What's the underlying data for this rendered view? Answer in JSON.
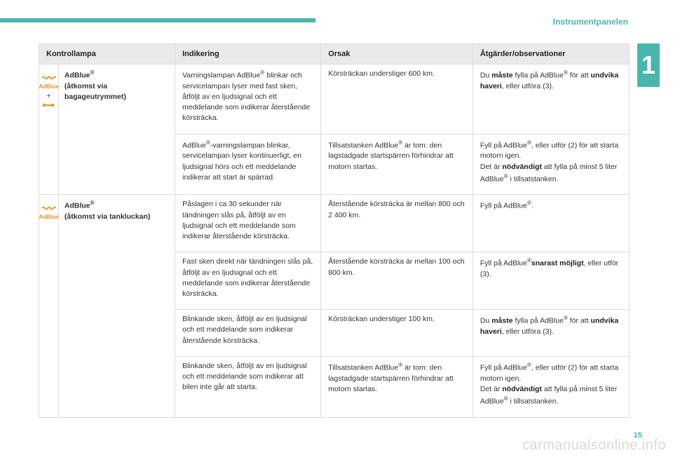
{
  "section_title": "Instrumentpanelen",
  "chapter": "1",
  "page_number": "15",
  "watermark": "carmanualsonline.info",
  "headers": [
    "Kontrollampa",
    "Indikering",
    "Orsak",
    "Åtgärder/observationer"
  ],
  "colors": {
    "teal": "#49b6ad",
    "amber": "#e8931e",
    "header_bg": "#eaeaea",
    "border": "#dcdcdc"
  },
  "group1": {
    "lamp_html": "AdBlue<span class=\"reg\">®</span><br>(åtkomst via bagageutrymmet)",
    "rows": [
      {
        "ind": "Varningslampan AdBlue<span class=\"reg\">®</span> blinkar och servicelampan lyser med fast sken, åtföljt av en ljudsignal och ett meddelande som indikerar återstående körsträcka.",
        "ors": "Körsträckan understiger 600 km.",
        "act": "Du <b>måste</b> fylla på AdBlue<span class=\"reg\">®</span> för att <b>undvika haveri</b>, eller utföra (3)."
      },
      {
        "ind": "AdBlue<span class=\"reg\">®</span>-varningslampan blinkar, servicelampan lyser kontinuerligt, en ljudsignal hörs och ett meddelande indikerar att start är spärrad.",
        "ors": "Tillsatstanken AdBlue<span class=\"reg\">®</span> är tom: den lagstadgade startspärren förhindrar att motorn startas.",
        "act": "Fyll på AdBlue<span class=\"reg\">®</span>, eller utför (2) för att starta motorn igen.<br>Det är <b>nödvändigt</b> att fylla på minst 5 liter AdBlue<span class=\"reg\">®</span> i tillsatstanken."
      }
    ]
  },
  "group2": {
    "lamp_html": "AdBlue<span class=\"reg\">®</span><br>(åtkomst via tankluckan)",
    "rows": [
      {
        "ind": "Påslagen i ca 30 sekunder när tändningen slås på, åtföljt av en ljudsignal och ett meddelande som indikerar återstående körsträcka.",
        "ors": "Återstående körsträcka är mellan 800 och 2 400 km.",
        "act": "Fyll på AdBlue<span class=\"reg\">®</span>."
      },
      {
        "ind": "Fast sken direkt när tändningen slås på, åtföljt av en ljudsignal och ett meddelande som indikerar återstående körsträcka.",
        "ors": "Återstående körsträcka är mellan 100 och 800 km.",
        "act": "Fyll på AdBlue<span class=\"reg\">®</span><b>snarast möjligt</b>, eller utför (3)."
      },
      {
        "ind": "Blinkande sken, åtföljt av en ljudsignal och ett meddelande som indikerar återstående körsträcka.",
        "ors": "Körsträckan understiger 100 km.",
        "act": "Du <b>måste</b> fylla på AdBlue<span class=\"reg\">®</span> för att <b>undvika haveri</b>, eller utföra (3)."
      },
      {
        "ind": "Blinkande sken, åtföljt av en ljudsignal och ett meddelande som indikerar att bilen inte går att starta.",
        "ors": "Tillsatstanken AdBlue<span class=\"reg\">®</span> är tom: den lagstadgade startspärren förhindrar att motorn startas.",
        "act": "Fyll på AdBlue<span class=\"reg\">®</span>, eller utför (2) för att starta motorn igen.<br>Det är <b>nödvändigt</b> att fylla på minst 5 liter AdBlue<span class=\"reg\">®</span> i tillsatstanken."
      }
    ]
  }
}
